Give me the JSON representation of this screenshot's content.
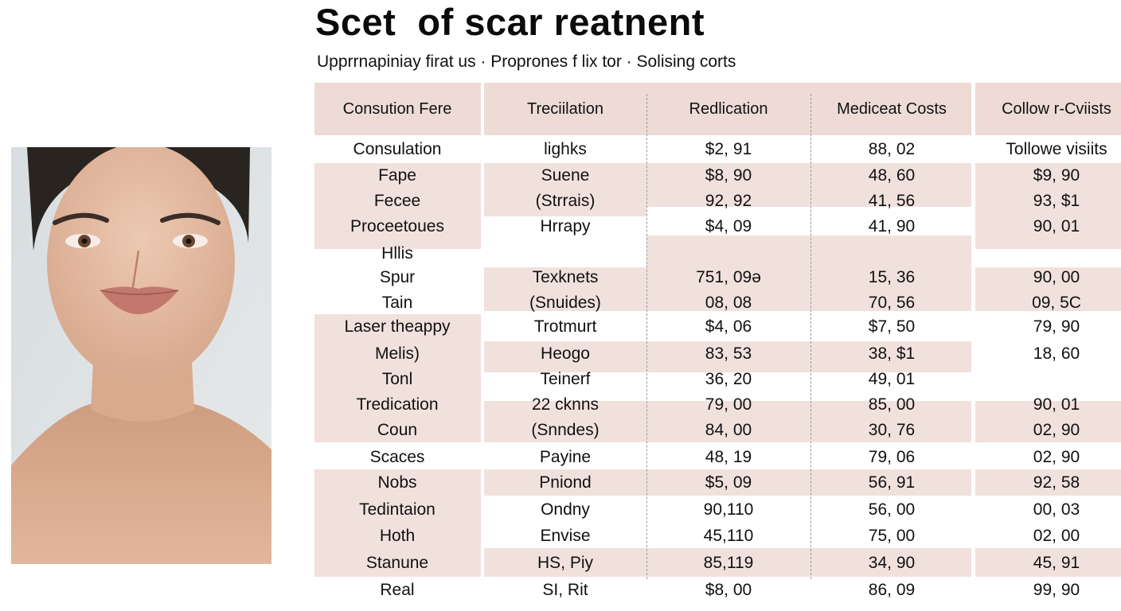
{
  "title": "Scet  of scar reatnent",
  "subtitle": "Upprrnapiniay firat us · Proprones f lix tor · Solising corts",
  "table": {
    "headers": [
      "Consution Fere",
      "Treciilation",
      "Redlication",
      "Mediceat Costs",
      "Collow r-Cviists"
    ],
    "rows": [
      [
        "Consulation",
        "lighks",
        "$2, 91",
        "88, 02",
        "Tollowe visiits"
      ],
      [
        "Fape",
        "Suene",
        "$8, 90",
        "48, 60",
        "$9, 90"
      ],
      [
        "Fecee",
        "(Strrais)",
        "92, 92",
        "41, 56",
        "93, $1"
      ],
      [
        "Proceetoues",
        "Hrrapy",
        "$4, 09",
        "41, 90",
        "90, 01"
      ],
      [
        "Hllis",
        "",
        "",
        "",
        ""
      ],
      [
        "Spur",
        "Texknets",
        "751, 09ə",
        "15, 36",
        "90, 00"
      ],
      [
        "Tain",
        "(Snuides)",
        "08, 08",
        "70, 56",
        "09, 5C"
      ],
      [
        "Laser theappy",
        "Trotmurt",
        "$4, 06",
        "$7, 50",
        "79, 90"
      ],
      [
        "Melis)",
        "Heogo",
        "83, 53",
        "38, $1",
        "18, 60"
      ],
      [
        "Tonl",
        "Teinerf",
        "36, 20",
        "49, 01",
        ""
      ],
      [
        "Tredication",
        "22 cknns",
        "79, 00",
        "85, 00",
        "90, 01"
      ],
      [
        "Coun",
        "(Snndes)",
        "84, 00",
        "30, 76",
        "02, 90"
      ],
      [
        "Scaces",
        "Payine",
        "48, 19",
        "79, 06",
        "02, 90"
      ],
      [
        "Nobs",
        "Pniond",
        "$5, 09",
        "56, 91",
        "92, 58"
      ],
      [
        "Tedintaion",
        "Ondny",
        "90,110",
        "56, 00",
        "00, 03"
      ],
      [
        "Hoth",
        "Envise",
        "45,110",
        "75, 00",
        "02, 00"
      ],
      [
        "Stanune",
        "HS, Piy",
        "85,119",
        "34, 90",
        "45, 91"
      ],
      [
        "Real",
        "SI, Rit",
        "$8, 00",
        "86, 09",
        "99, 90"
      ]
    ]
  },
  "colors": {
    "shade": "#f1e1dd",
    "header_shade": "#eedbd6",
    "text": "#111111"
  }
}
